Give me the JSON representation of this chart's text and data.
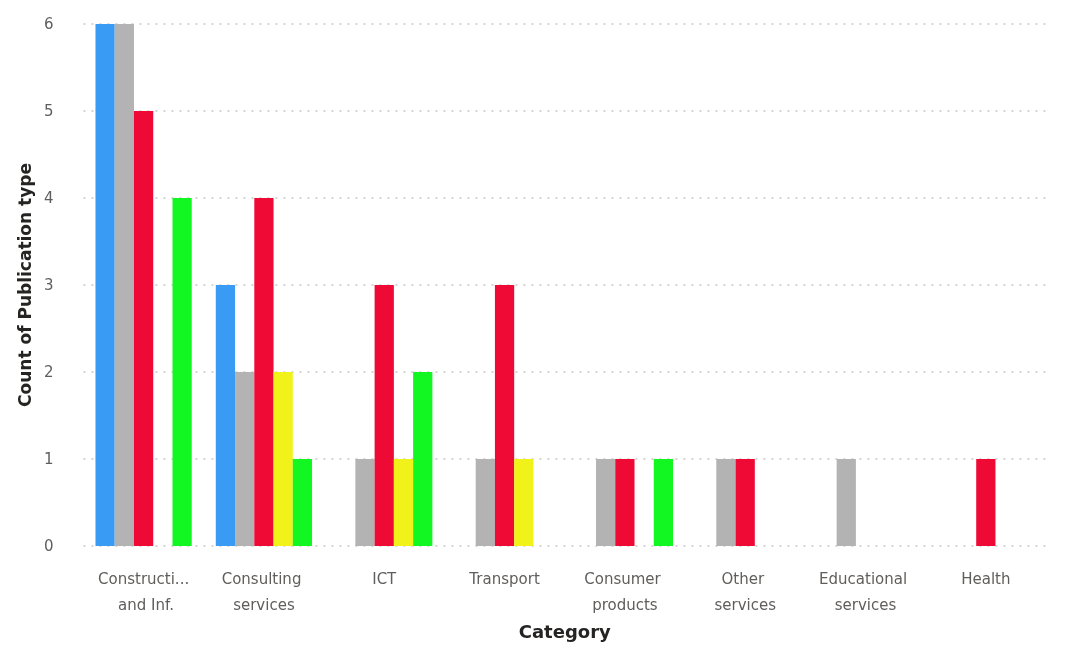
{
  "chart_data": {
    "type": "bar",
    "xlabel": "Category",
    "ylabel": "Count of Publication type",
    "categories": [
      "Constructi... and Inf.",
      "Consulting services",
      "ICT",
      "Transport",
      "Consumer products",
      "Other services",
      "Educational services",
      "Health"
    ],
    "series": [
      {
        "color": "#3a9bf4",
        "values": [
          6,
          3,
          0,
          0,
          0,
          0,
          0,
          0
        ]
      },
      {
        "color": "#b3b3b3",
        "values": [
          6,
          2,
          1,
          1,
          1,
          1,
          1,
          0
        ]
      },
      {
        "color": "#ee0a35",
        "values": [
          5,
          4,
          3,
          3,
          1,
          1,
          0,
          1
        ]
      },
      {
        "color": "#f2f21b",
        "values": [
          0,
          2,
          1,
          1,
          0,
          0,
          0,
          0
        ]
      },
      {
        "color": "#12f722",
        "values": [
          4,
          1,
          2,
          0,
          1,
          0,
          0,
          0
        ]
      }
    ],
    "ylim": [
      0,
      6
    ],
    "yticks": [
      0,
      1,
      2,
      3,
      4,
      5,
      6
    ],
    "grid": "y"
  }
}
